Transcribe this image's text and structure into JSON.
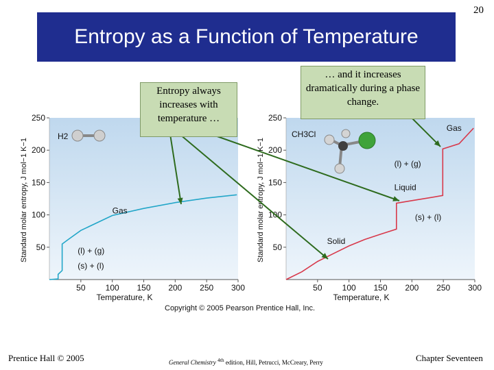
{
  "page_number": "20",
  "title": "Entropy as a Function of Temperature",
  "callouts": {
    "left": "Entropy always increases with temperature …",
    "right": "… and it increases dramatically during a phase change."
  },
  "copyright": "Copyright © 2005 Pearson Prentice Hall, Inc.",
  "footer": {
    "left": "Prentice Hall © 2005",
    "center_italic": "General Chemistry",
    "center_sup": "4th",
    "center_rest": " edition, Hill, Petrucci, McCreary, Perry",
    "right": "Chapter Seventeen"
  },
  "colors": {
    "title_bar": "#1f2d8f",
    "callout_fill": "#c8dcb4",
    "arrow": "#2e6b1e",
    "h2_curve": "#22a6c8",
    "ch3cl_curve": "#d8384a",
    "plot_background_top": "#bfd8ee",
    "plot_background_bottom": "#eef5fb"
  },
  "chart_data": [
    {
      "type": "line",
      "title": "",
      "molecule_label": "H2",
      "xlabel": "Temperature, K",
      "ylabel": "Standard molar entropy, J mol−1 K−1",
      "xlim": [
        0,
        300
      ],
      "ylim": [
        0,
        250
      ],
      "x_ticks": [
        50,
        100,
        150,
        200,
        250,
        300
      ],
      "y_ticks": [
        50,
        100,
        150,
        200,
        250
      ],
      "grid": false,
      "series": [
        {
          "name": "H2",
          "x": [
            0,
            13.8,
            13.8,
            20.3,
            20.3,
            30,
            50,
            100,
            150,
            200,
            250,
            298
          ],
          "y": [
            0,
            1,
            8,
            14,
            55,
            62,
            76,
            99,
            110,
            119,
            126,
            131
          ]
        }
      ],
      "annotations": [
        {
          "text": "Gas",
          "x": 100,
          "y": 102
        },
        {
          "text": "(l) + (g)",
          "x": 45,
          "y": 40
        },
        {
          "text": "(s) + (l)",
          "x": 45,
          "y": 17
        }
      ]
    },
    {
      "type": "line",
      "title": "",
      "molecule_label": "CH3Cl",
      "xlabel": "Temperature, K",
      "ylabel": "Standard molar entropy, J mol−1 K−1",
      "xlim": [
        0,
        300
      ],
      "ylim": [
        0,
        250
      ],
      "x_ticks": [
        50,
        100,
        150,
        200,
        250,
        300
      ],
      "y_ticks": [
        50,
        100,
        150,
        200,
        250
      ],
      "grid": false,
      "series": [
        {
          "name": "CH3Cl",
          "x": [
            0,
            25,
            50,
            75,
            100,
            125,
            150,
            175.4,
            175.4,
            200,
            225,
            249,
            249,
            275,
            298
          ],
          "y": [
            0,
            12,
            28,
            40,
            52,
            62,
            70,
            78,
            118,
            122,
            126,
            130,
            202,
            210,
            234
          ]
        }
      ],
      "annotations": [
        {
          "text": "Gas",
          "x": 255,
          "y": 230
        },
        {
          "text": "(l) + (g)",
          "x": 172,
          "y": 175
        },
        {
          "text": "Liquid",
          "x": 172,
          "y": 138
        },
        {
          "text": "(s) + (l)",
          "x": 205,
          "y": 92
        },
        {
          "text": "Solid",
          "x": 65,
          "y": 55
        }
      ]
    }
  ]
}
